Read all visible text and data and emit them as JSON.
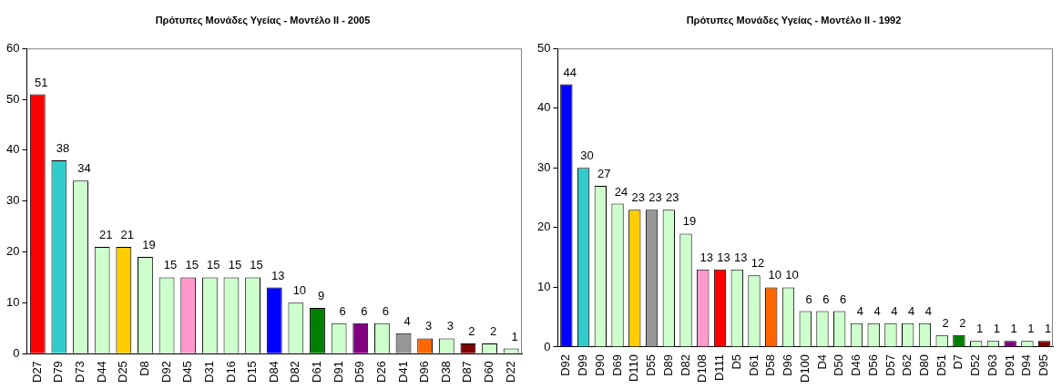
{
  "chart_data": [
    {
      "type": "bar",
      "title": "Πρότυπες Μονάδες Υγείας - Μοντέλο ΙΙ - 2005",
      "categories": [
        "D27",
        "D79",
        "D73",
        "D44",
        "D25",
        "D8",
        "D92",
        "D45",
        "D31",
        "D16",
        "D15",
        "D84",
        "D82",
        "D61",
        "D91",
        "D59",
        "D26",
        "D41",
        "D96",
        "D38",
        "D87",
        "D60",
        "D22"
      ],
      "values": [
        51,
        38,
        34,
        21,
        21,
        19,
        15,
        15,
        15,
        15,
        15,
        13,
        10,
        9,
        6,
        6,
        6,
        4,
        3,
        3,
        2,
        2,
        1
      ],
      "colors": [
        "#ff0000",
        "#33cccc",
        "#ccffcc",
        "#ccffcc",
        "#ffcc00",
        "#ccffcc",
        "#ccffcc",
        "#ff99cc",
        "#ccffcc",
        "#ccffcc",
        "#ccffcc",
        "#0000ff",
        "#ccffcc",
        "#008000",
        "#ccffcc",
        "#800080",
        "#ccffcc",
        "#969696",
        "#ff6600",
        "#ccffcc",
        "#800000",
        "#ccffcc",
        "#ccffcc"
      ],
      "ylim": [
        0,
        60
      ],
      "yticks": [
        0,
        10,
        20,
        30,
        40,
        50,
        60
      ],
      "grid": false,
      "legend": false,
      "data_labels": true
    },
    {
      "type": "bar",
      "title": "Πρότυπες Μονάδες Υγείας - Μοντέλο ΙΙ - 1992",
      "categories": [
        "D92",
        "D99",
        "D90",
        "D69",
        "D110",
        "D55",
        "D89",
        "D82",
        "D108",
        "D111",
        "D5",
        "D61",
        "D58",
        "D96",
        "D100",
        "D4",
        "D50",
        "D46",
        "D56",
        "D57",
        "D62",
        "D80",
        "D51",
        "D7",
        "D52",
        "D63",
        "D91",
        "D94",
        "D95"
      ],
      "values": [
        44,
        30,
        27,
        24,
        23,
        23,
        23,
        19,
        13,
        13,
        13,
        12,
        10,
        10,
        6,
        6,
        6,
        4,
        4,
        4,
        4,
        4,
        2,
        2,
        1,
        1,
        1,
        1,
        1
      ],
      "colors": [
        "#0000ff",
        "#33cccc",
        "#ccffcc",
        "#ccffcc",
        "#ffcc00",
        "#969696",
        "#ccffcc",
        "#ccffcc",
        "#ff99cc",
        "#ff0000",
        "#ccffcc",
        "#ccffcc",
        "#ff6600",
        "#ccffcc",
        "#ccffcc",
        "#ccffcc",
        "#ccffcc",
        "#ccffcc",
        "#ccffcc",
        "#ccffcc",
        "#ccffcc",
        "#ccffcc",
        "#ccffcc",
        "#008000",
        "#ccffcc",
        "#ccffcc",
        "#800080",
        "#ccffcc",
        "#800000"
      ],
      "ylim": [
        0,
        50
      ],
      "yticks": [
        0,
        10,
        20,
        30,
        40,
        50
      ],
      "grid": false,
      "legend": false,
      "data_labels": true
    }
  ]
}
